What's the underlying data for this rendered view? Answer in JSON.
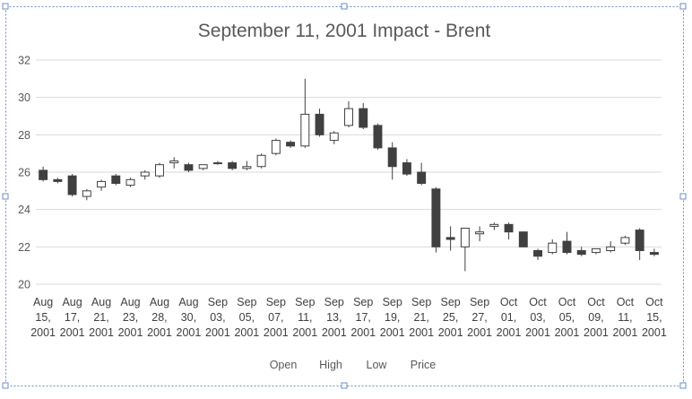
{
  "chart_data": {
    "type": "candlestick",
    "title": "September 11, 2001 Impact - Brent",
    "ylim": [
      20,
      32
    ],
    "yticks": [
      20,
      22,
      24,
      26,
      28,
      30,
      32
    ],
    "grid": true,
    "legend": {
      "position": "bottom",
      "entries": [
        "Open",
        "High",
        "Low",
        "Price"
      ]
    },
    "x_labels": [
      [
        "Aug",
        "15,",
        "2001"
      ],
      [
        "Aug",
        "17,",
        "2001"
      ],
      [
        "Aug",
        "21,",
        "2001"
      ],
      [
        "Aug",
        "23,",
        "2001"
      ],
      [
        "Aug",
        "28,",
        "2001"
      ],
      [
        "Aug",
        "30,",
        "2001"
      ],
      [
        "Sep",
        "03,",
        "2001"
      ],
      [
        "Sep",
        "05,",
        "2001"
      ],
      [
        "Sep",
        "07,",
        "2001"
      ],
      [
        "Sep",
        "11,",
        "2001"
      ],
      [
        "Sep",
        "13,",
        "2001"
      ],
      [
        "Sep",
        "17,",
        "2001"
      ],
      [
        "Sep",
        "19,",
        "2001"
      ],
      [
        "Sep",
        "21,",
        "2001"
      ],
      [
        "Sep",
        "25,",
        "2001"
      ],
      [
        "Sep",
        "27,",
        "2001"
      ],
      [
        "Oct",
        "01,",
        "2001"
      ],
      [
        "Oct",
        "03,",
        "2001"
      ],
      [
        "Oct",
        "05,",
        "2001"
      ],
      [
        "Oct",
        "09,",
        "2001"
      ],
      [
        "Oct",
        "11,",
        "2001"
      ],
      [
        "Oct",
        "15,",
        "2001"
      ]
    ],
    "x_label_every": 2,
    "candles": [
      {
        "open": 26.1,
        "high": 26.3,
        "low": 25.5,
        "close": 25.6
      },
      {
        "open": 25.6,
        "high": 25.7,
        "low": 25.4,
        "close": 25.5
      },
      {
        "open": 25.8,
        "high": 25.9,
        "low": 24.7,
        "close": 24.8
      },
      {
        "open": 24.7,
        "high": 25.1,
        "low": 24.5,
        "close": 25.0
      },
      {
        "open": 25.2,
        "high": 25.6,
        "low": 25.0,
        "close": 25.5
      },
      {
        "open": 25.8,
        "high": 25.9,
        "low": 25.3,
        "close": 25.4
      },
      {
        "open": 25.3,
        "high": 25.7,
        "low": 25.2,
        "close": 25.6
      },
      {
        "open": 25.8,
        "high": 26.1,
        "low": 25.6,
        "close": 26.0
      },
      {
        "open": 25.8,
        "high": 26.5,
        "low": 25.7,
        "close": 26.4
      },
      {
        "open": 26.5,
        "high": 26.8,
        "low": 26.2,
        "close": 26.6
      },
      {
        "open": 26.4,
        "high": 26.5,
        "low": 26.0,
        "close": 26.1
      },
      {
        "open": 26.2,
        "high": 26.4,
        "low": 26.1,
        "close": 26.4
      },
      {
        "open": 26.5,
        "high": 26.6,
        "low": 26.4,
        "close": 26.5
      },
      {
        "open": 26.5,
        "high": 26.6,
        "low": 26.1,
        "close": 26.2
      },
      {
        "open": 26.2,
        "high": 26.6,
        "low": 26.1,
        "close": 26.3
      },
      {
        "open": 26.3,
        "high": 27.0,
        "low": 26.2,
        "close": 26.9
      },
      {
        "open": 27.0,
        "high": 27.8,
        "low": 26.9,
        "close": 27.7
      },
      {
        "open": 27.6,
        "high": 27.7,
        "low": 27.3,
        "close": 27.4
      },
      {
        "open": 27.4,
        "high": 31.0,
        "low": 27.3,
        "close": 29.1
      },
      {
        "open": 29.1,
        "high": 29.4,
        "low": 27.9,
        "close": 28.0
      },
      {
        "open": 27.7,
        "high": 28.2,
        "low": 27.5,
        "close": 28.1
      },
      {
        "open": 28.5,
        "high": 29.8,
        "low": 28.4,
        "close": 29.4
      },
      {
        "open": 29.4,
        "high": 29.7,
        "low": 28.3,
        "close": 28.4
      },
      {
        "open": 28.5,
        "high": 28.6,
        "low": 27.2,
        "close": 27.3
      },
      {
        "open": 27.3,
        "high": 27.6,
        "low": 25.6,
        "close": 26.3
      },
      {
        "open": 26.5,
        "high": 26.7,
        "low": 25.8,
        "close": 25.9
      },
      {
        "open": 26.0,
        "high": 26.5,
        "low": 25.3,
        "close": 25.4
      },
      {
        "open": 25.1,
        "high": 25.2,
        "low": 21.7,
        "close": 22.0
      },
      {
        "open": 22.5,
        "high": 23.1,
        "low": 21.8,
        "close": 22.4
      },
      {
        "open": 22.0,
        "high": 23.0,
        "low": 20.7,
        "close": 23.0
      },
      {
        "open": 22.7,
        "high": 23.1,
        "low": 22.3,
        "close": 22.8
      },
      {
        "open": 23.1,
        "high": 23.3,
        "low": 22.9,
        "close": 23.2
      },
      {
        "open": 23.2,
        "high": 23.3,
        "low": 22.4,
        "close": 22.8
      },
      {
        "open": 22.8,
        "high": 22.8,
        "low": 22.0,
        "close": 22.0
      },
      {
        "open": 21.8,
        "high": 21.9,
        "low": 21.3,
        "close": 21.5
      },
      {
        "open": 21.7,
        "high": 22.4,
        "low": 21.6,
        "close": 22.2
      },
      {
        "open": 22.3,
        "high": 22.8,
        "low": 21.6,
        "close": 21.7
      },
      {
        "open": 21.8,
        "high": 22.0,
        "low": 21.5,
        "close": 21.6
      },
      {
        "open": 21.7,
        "high": 21.9,
        "low": 21.6,
        "close": 21.9
      },
      {
        "open": 21.8,
        "high": 22.3,
        "low": 21.7,
        "close": 22.0
      },
      {
        "open": 22.2,
        "high": 22.6,
        "low": 22.1,
        "close": 22.5
      },
      {
        "open": 22.9,
        "high": 23.0,
        "low": 21.3,
        "close": 21.8
      },
      {
        "open": 21.7,
        "high": 21.9,
        "low": 21.5,
        "close": 21.6
      }
    ]
  }
}
